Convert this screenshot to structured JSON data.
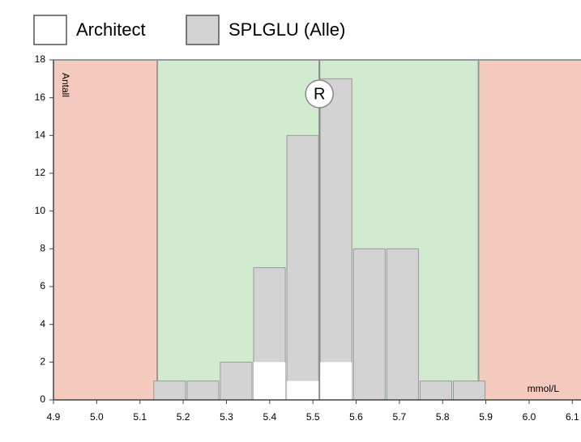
{
  "chart_data": {
    "type": "histogram",
    "x_label": "mmol/L",
    "y_label": "Antall",
    "bins": [
      5.13,
      5.207,
      5.284,
      5.361,
      5.438,
      5.515,
      5.592,
      5.669,
      5.746,
      5.823,
      5.9
    ],
    "series": [
      {
        "name": "Architect",
        "color": "#ffffff",
        "values": [
          0,
          0,
          0,
          2,
          1,
          2,
          0,
          0,
          0,
          0
        ]
      },
      {
        "name": "SPLGLU (Alle)",
        "color": "#d3d3d3",
        "values": [
          1,
          1,
          2,
          7,
          14,
          17,
          8,
          8,
          1,
          1
        ]
      }
    ],
    "xlim": [
      4.9,
      6.12
    ],
    "xticks": [
      4.9,
      {
        "value": 5,
        "label": "5.0"
      },
      5.1,
      5.2,
      5.3,
      5.4,
      5.5,
      5.6,
      5.7,
      5.8,
      5.9,
      {
        "value": 6,
        "label": "6.0"
      },
      6.1
    ],
    "ylim": [
      0,
      18
    ],
    "yticks": [
      0,
      2,
      4,
      6,
      8,
      10,
      12,
      14,
      16,
      18
    ],
    "target_range": [
      5.14,
      5.883
    ],
    "target_color": "#d2ead0",
    "outside_color": "#f5cbbf",
    "reference_value": 5.515,
    "reference_label": "R"
  }
}
